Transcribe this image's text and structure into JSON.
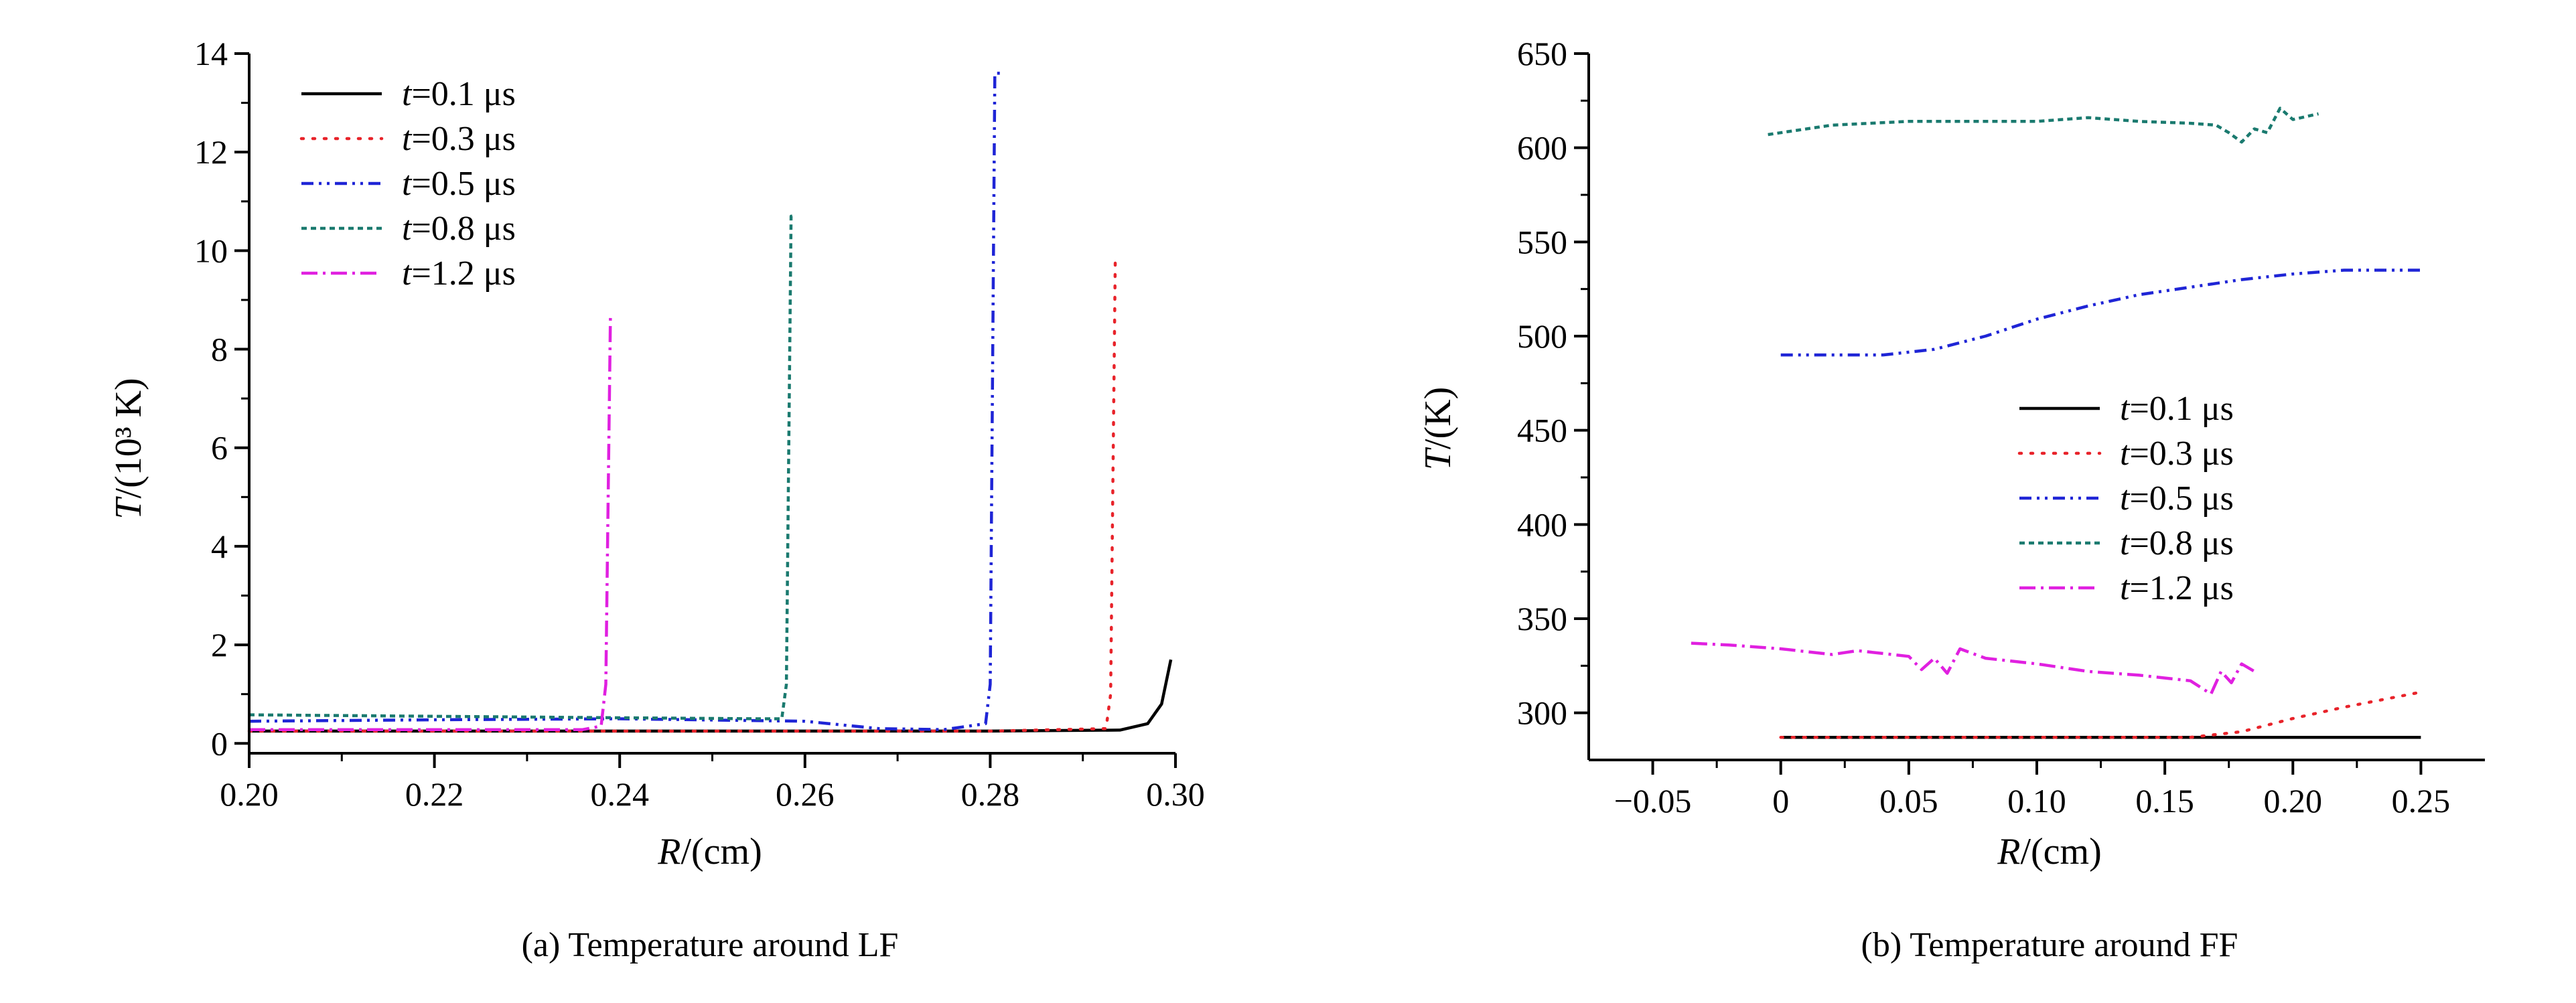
{
  "chart_data": [
    {
      "id": "left",
      "type": "line",
      "caption": "(a) Temperature around LF",
      "xlabel": "R/(cm)",
      "ylabel": "T/(10³ K)",
      "xlim": [
        0.2,
        0.3
      ],
      "ylim": [
        -0.2,
        14
      ],
      "xticks": [
        0.2,
        0.22,
        0.24,
        0.26,
        0.28,
        0.3
      ],
      "xtick_labels": [
        "0.20",
        "0.22",
        "0.24",
        "0.26",
        "0.28",
        "0.30"
      ],
      "yticks": [
        0,
        2,
        4,
        6,
        8,
        10,
        12,
        14
      ],
      "ytick_labels": [
        "0",
        "2",
        "4",
        "6",
        "8",
        "10",
        "12",
        "14"
      ],
      "legend_position": "top-left",
      "series": [
        {
          "name": "t=0.1 μs",
          "prefix": "t",
          "suffix": "=0.1 μs",
          "color": "#000000",
          "dash": "none",
          "x": [
            0.2,
            0.22,
            0.24,
            0.26,
            0.28,
            0.294,
            0.297,
            0.2985,
            0.2995
          ],
          "y": [
            0.25,
            0.25,
            0.25,
            0.25,
            0.25,
            0.27,
            0.4,
            0.8,
            1.7
          ]
        },
        {
          "name": "t=0.3 μs",
          "prefix": "t",
          "suffix": "=0.3 μs",
          "color": "#e8232a",
          "dash": "3,14",
          "x": [
            0.2,
            0.23,
            0.26,
            0.28,
            0.2925,
            0.293,
            0.2935,
            0.2938
          ],
          "y": [
            0.25,
            0.25,
            0.25,
            0.25,
            0.3,
            1.0,
            9.8,
            9.8
          ]
        },
        {
          "name": "t=0.5 μs",
          "prefix": "t",
          "suffix": "=0.5 μs",
          "color": "#1f25d6",
          "dash": "18,8,4,8,4,8",
          "x": [
            0.2,
            0.22,
            0.24,
            0.26,
            0.268,
            0.275,
            0.2795,
            0.28,
            0.2805,
            0.2812
          ],
          "y": [
            0.45,
            0.48,
            0.5,
            0.45,
            0.3,
            0.28,
            0.4,
            1.2,
            13.6,
            13.6
          ]
        },
        {
          "name": "t=0.8 μs",
          "prefix": "t",
          "suffix": "=0.8 μs",
          "color": "#1a7a6f",
          "dash": "8,6",
          "x": [
            0.2,
            0.22,
            0.24,
            0.255,
            0.2575,
            0.258,
            0.2585,
            0.259
          ],
          "y": [
            0.58,
            0.55,
            0.52,
            0.5,
            0.5,
            1.2,
            10.7,
            10.7
          ]
        },
        {
          "name": "t=1.2 μs",
          "prefix": "t",
          "suffix": "=1.2 μs",
          "color": "#e020e0",
          "dash": "24,8,4,8",
          "x": [
            0.2,
            0.22,
            0.236,
            0.238,
            0.2385,
            0.239
          ],
          "y": [
            0.28,
            0.28,
            0.28,
            0.35,
            1.2,
            8.7
          ]
        }
      ]
    },
    {
      "id": "right",
      "type": "line",
      "caption": "(b) Temperature around FF",
      "xlabel": "R/(cm)",
      "ylabel": "T/(K)",
      "xlim": [
        -0.075,
        0.275
      ],
      "ylim": [
        275,
        650
      ],
      "xticks": [
        -0.05,
        0,
        0.05,
        0.1,
        0.15,
        0.2,
        0.25
      ],
      "xtick_labels": [
        "−0.05",
        "0",
        "0.05",
        "0.10",
        "0.15",
        "0.20",
        "0.25"
      ],
      "yticks": [
        300,
        350,
        400,
        450,
        500,
        550,
        600,
        650
      ],
      "ytick_labels": [
        "300",
        "350",
        "400",
        "450",
        "500",
        "550",
        "600",
        "650"
      ],
      "legend_position": "center-right",
      "series": [
        {
          "name": "t=0.1 μs",
          "prefix": "t",
          "suffix": "=0.1 μs",
          "color": "#000000",
          "dash": "none",
          "x": [
            0.0,
            0.25
          ],
          "y": [
            287,
            287
          ]
        },
        {
          "name": "t=0.3 μs",
          "prefix": "t",
          "suffix": "=0.3 μs",
          "color": "#e8232a",
          "dash": "3,14",
          "x": [
            0.0,
            0.16,
            0.18,
            0.2,
            0.22,
            0.25
          ],
          "y": [
            287,
            287,
            290,
            297,
            303,
            311
          ]
        },
        {
          "name": "t=0.5 μs",
          "prefix": "t",
          "suffix": "=0.5 μs",
          "color": "#1f25d6",
          "dash": "18,8,4,8,4,8",
          "x": [
            0.0,
            0.02,
            0.04,
            0.06,
            0.08,
            0.1,
            0.12,
            0.14,
            0.16,
            0.18,
            0.2,
            0.22,
            0.25
          ],
          "y": [
            490,
            490,
            490,
            493,
            500,
            509,
            516,
            522,
            526,
            530,
            533,
            535,
            535
          ]
        },
        {
          "name": "t=0.8 μs",
          "prefix": "t",
          "suffix": "=0.8 μs",
          "color": "#1a7a6f",
          "dash": "8,6",
          "x": [
            -0.005,
            0.02,
            0.05,
            0.08,
            0.1,
            0.12,
            0.14,
            0.16,
            0.17,
            0.175,
            0.18,
            0.185,
            0.19,
            0.195,
            0.2,
            0.21
          ],
          "y": [
            607,
            612,
            614,
            614,
            614,
            616,
            614,
            613,
            612,
            608,
            603,
            610,
            608,
            621,
            615,
            618
          ]
        },
        {
          "name": "t=1.2 μs",
          "prefix": "t",
          "suffix": "=1.2 μs",
          "color": "#e020e0",
          "dash": "24,8,4,8",
          "x": [
            -0.035,
            -0.02,
            0.0,
            0.02,
            0.03,
            0.05,
            0.055,
            0.06,
            0.065,
            0.07,
            0.08,
            0.1,
            0.12,
            0.14,
            0.16,
            0.168,
            0.172,
            0.176,
            0.18,
            0.185
          ],
          "y": [
            337,
            336,
            334,
            331,
            333,
            330,
            323,
            329,
            321,
            334,
            329,
            326,
            322,
            320,
            317,
            310,
            322,
            316,
            326,
            322
          ]
        }
      ]
    }
  ]
}
